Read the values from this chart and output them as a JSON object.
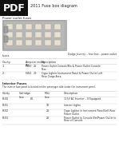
{
  "title": "2011 Fuse box diagram",
  "pdf_label": "PDF",
  "section1_title": "Power outlet fuses",
  "image_caption": "Dodge Journey – fuse box – power outlet",
  "fuses_label": "fuses",
  "table1_headers": [
    "Cavity",
    "Ampere rating\n(A)",
    "Description"
  ],
  "table1_rows": [
    [
      "1",
      "F160  25",
      "Power Outlet Console/Bin & Power Outlet Console\nRear"
    ],
    [
      "2",
      "F162  20",
      "Cigar Lighter Instrument Panel & Power Outlet Left\nRear Cargo Area"
    ]
  ],
  "section2_title": "Interior Fuses",
  "section2_note": "The interior fuse panel is located on the passenger side under the instrument panel.",
  "table2_headers": [
    "Cavity",
    "Cartridge\nfuse",
    "Mini\nfuse",
    "Description"
  ],
  "table2_rows": [
    [
      "F100",
      "80",
      "",
      "115V AC Inverter – If Equipped"
    ],
    [
      "F101",
      "",
      "10",
      "Interior Lights"
    ],
    [
      "F102",
      "",
      "20",
      "Cigar Lighter in Instrument Panel/Left Rear\nPower Outlet"
    ],
    [
      "F103",
      "",
      "20",
      "Power Outlet in Console Bin/Power Outlet in\nRear of Console"
    ]
  ],
  "bg_color": "#ffffff",
  "text_color": "#2a2a2a",
  "table_line_color": "#cccccc",
  "pdf_bg": "#111111",
  "pdf_text": "#ffffff",
  "title_color": "#222222",
  "img_bg": "#c8c8c8",
  "img_border": "#888888"
}
